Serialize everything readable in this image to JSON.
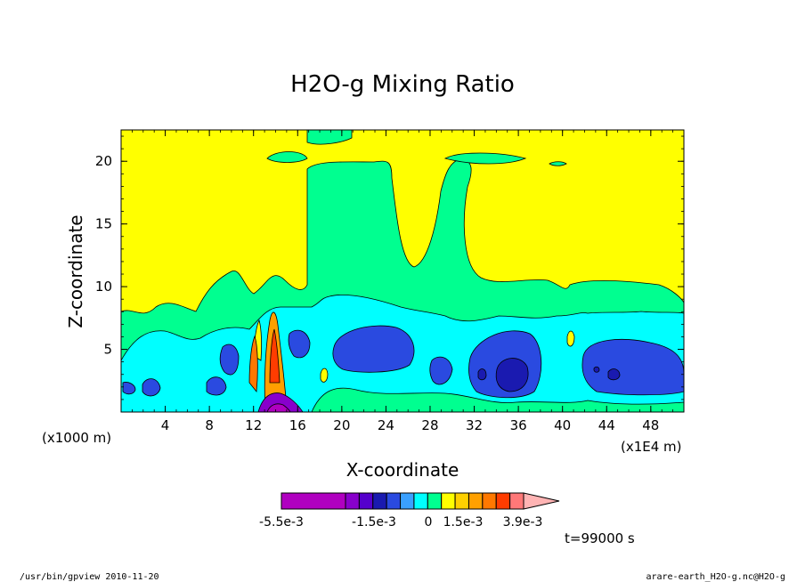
{
  "chart_data": {
    "type": "contour",
    "title": "H2O-g Mixing Ratio",
    "xlabel": "X-coordinate",
    "ylabel": "Z-coordinate",
    "x_unit_label": "(x1E4 m)",
    "y_unit_label": "(x1000 m)",
    "xlim": [
      0,
      51
    ],
    "ylim": [
      0,
      22.5
    ],
    "x_ticks": [
      "4",
      "8",
      "12",
      "16",
      "20",
      "24",
      "28",
      "32",
      "36",
      "40",
      "44",
      "48"
    ],
    "y_ticks": [
      "5",
      "10",
      "15",
      "20"
    ],
    "colorbar": {
      "labels": [
        "-5.5e-3",
        "-1.5e-3",
        "0",
        "1.5e-3",
        "3.9e-3"
      ],
      "colors": [
        "#b000c0",
        "#8800cc",
        "#5500cc",
        "#1a1ab0",
        "#2a4ae0",
        "#3aa0ff",
        "#00ffff",
        "#00ff90",
        "#ffff00",
        "#ffd000",
        "#ffa000",
        "#ff7800",
        "#ff3c00",
        "#ff7878",
        "#ffb4b4"
      ]
    },
    "time_label": "t=99000 s",
    "footer_left": "/usr/bin/gpview  2010-11-20",
    "footer_right": "arare-earth_H2O-g.nc@H2O-g"
  }
}
